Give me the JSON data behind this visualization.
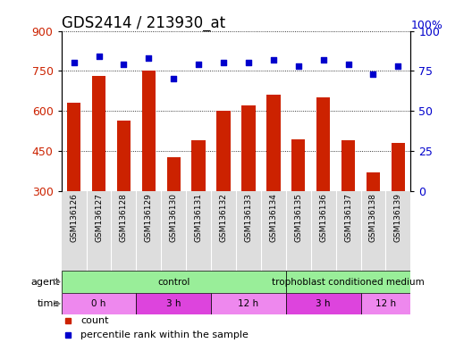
{
  "title": "GDS2414 / 213930_at",
  "samples": [
    "GSM136126",
    "GSM136127",
    "GSM136128",
    "GSM136129",
    "GSM136130",
    "GSM136131",
    "GSM136132",
    "GSM136133",
    "GSM136134",
    "GSM136135",
    "GSM136136",
    "GSM136137",
    "GSM136138",
    "GSM136139"
  ],
  "counts": [
    630,
    730,
    565,
    750,
    425,
    490,
    600,
    620,
    660,
    495,
    650,
    490,
    370,
    480
  ],
  "percentile_ranks": [
    80,
    84,
    79,
    83,
    70,
    79,
    80,
    80,
    82,
    78,
    82,
    79,
    73,
    78
  ],
  "ylim_left": [
    300,
    900
  ],
  "ylim_right": [
    0,
    100
  ],
  "yticks_left": [
    300,
    450,
    600,
    750,
    900
  ],
  "yticks_right": [
    0,
    25,
    50,
    75,
    100
  ],
  "bar_color": "#cc2200",
  "dot_color": "#0000cc",
  "grid_color": "#000000",
  "agent_data": [
    {
      "label": "control",
      "start": 0,
      "end": 9,
      "color": "#99ee99"
    },
    {
      "label": "trophoblast conditioned medium",
      "start": 9,
      "end": 14,
      "color": "#99ee99"
    }
  ],
  "time_data": [
    {
      "label": "0 h",
      "start": 0,
      "end": 3,
      "color": "#ee88ee"
    },
    {
      "label": "3 h",
      "start": 3,
      "end": 6,
      "color": "#dd44dd"
    },
    {
      "label": "12 h",
      "start": 6,
      "end": 9,
      "color": "#ee88ee"
    },
    {
      "label": "3 h",
      "start": 9,
      "end": 12,
      "color": "#dd44dd"
    },
    {
      "label": "12 h",
      "start": 12,
      "end": 14,
      "color": "#ee88ee"
    }
  ],
  "tick_label_color_left": "#cc2200",
  "tick_label_color_right": "#0000cc",
  "bg_color": "#dddddd",
  "title_fontsize": 12,
  "axis_fontsize": 9,
  "bar_fontsize": 6.5
}
